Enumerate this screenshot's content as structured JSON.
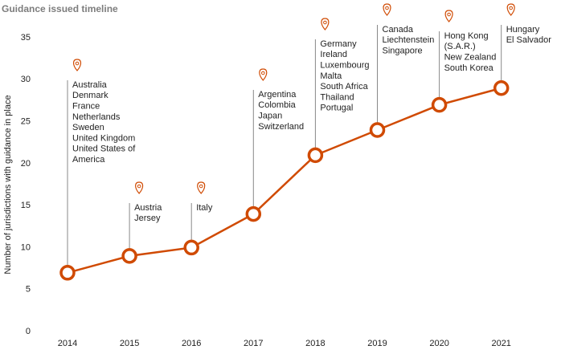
{
  "chart_data": {
    "type": "line",
    "title": "Guidance issued timeline",
    "y_label": "Number of jurisdictions with guidance in place",
    "categories": [
      "2014",
      "2015",
      "2016",
      "2017",
      "2018",
      "2019",
      "2020",
      "2021"
    ],
    "values": [
      7,
      9,
      10,
      14,
      21,
      24,
      27,
      29
    ],
    "color": "#d04a02",
    "ylim": [
      0,
      35
    ],
    "yticks": [
      0,
      5,
      10,
      15,
      20,
      25,
      30,
      35
    ],
    "annotations": [
      [
        "Australia",
        "Denmark",
        "France",
        "Netherlands",
        "Sweden",
        "United Kingdom",
        "United States of",
        "America"
      ],
      [
        "Austria",
        "Jersey"
      ],
      [
        "Italy"
      ],
      [
        "Argentina",
        "Colombia",
        "Japan",
        "Switzerland"
      ],
      [
        "Germany",
        "Ireland",
        "Luxembourg",
        "Malta",
        "South Africa",
        "Thailand",
        "Portugal"
      ],
      [
        "Canada",
        "Liechtenstein",
        "Singapore"
      ],
      [
        "Hong Kong",
        "(S.A.R.)",
        "New Zealand",
        "South Korea"
      ],
      [
        "Hungary",
        "El Salvador"
      ]
    ]
  }
}
